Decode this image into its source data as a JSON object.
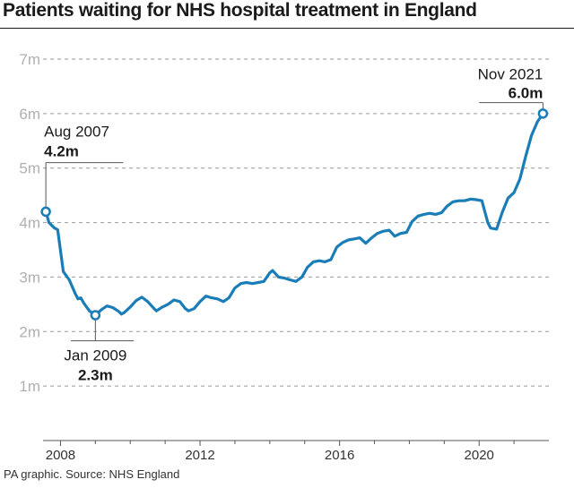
{
  "title": "Patients waiting for NHS hospital treatment in England",
  "source": "PA graphic. Source: NHS England",
  "chart_data": {
    "type": "line",
    "title": "Patients waiting for NHS hospital treatment in England",
    "xlabel": "",
    "ylabel": "",
    "unit": "m",
    "ylim": [
      0,
      7
    ],
    "xlim": [
      2007.5,
      2022.0
    ],
    "y_ticks": [
      1,
      2,
      3,
      4,
      5,
      6,
      7
    ],
    "y_tick_labels": [
      "1m",
      "2m",
      "3m",
      "4m",
      "5m",
      "6m",
      "7m"
    ],
    "x_ticks": [
      2008,
      2012,
      2016,
      2020
    ],
    "x_tick_labels": [
      "2008",
      "2012",
      "2016",
      "2020"
    ],
    "grid": "horizontal dashed",
    "legend": "none",
    "line_color": "#1a7db8",
    "series": [
      {
        "values": [
          [
            2007.58,
            4.2
          ],
          [
            2007.67,
            4.0
          ],
          [
            2007.83,
            3.9
          ],
          [
            2007.92,
            3.87
          ],
          [
            2008.08,
            3.1
          ],
          [
            2008.25,
            2.95
          ],
          [
            2008.42,
            2.7
          ],
          [
            2008.5,
            2.6
          ],
          [
            2008.58,
            2.62
          ],
          [
            2008.67,
            2.52
          ],
          [
            2008.75,
            2.45
          ],
          [
            2008.83,
            2.38
          ],
          [
            2009.0,
            2.3
          ],
          [
            2009.17,
            2.4
          ],
          [
            2009.33,
            2.47
          ],
          [
            2009.5,
            2.44
          ],
          [
            2009.67,
            2.37
          ],
          [
            2009.75,
            2.32
          ],
          [
            2009.83,
            2.35
          ],
          [
            2010.0,
            2.45
          ],
          [
            2010.17,
            2.57
          ],
          [
            2010.33,
            2.63
          ],
          [
            2010.5,
            2.55
          ],
          [
            2010.67,
            2.43
          ],
          [
            2010.75,
            2.38
          ],
          [
            2010.92,
            2.45
          ],
          [
            2011.08,
            2.5
          ],
          [
            2011.25,
            2.58
          ],
          [
            2011.42,
            2.55
          ],
          [
            2011.58,
            2.42
          ],
          [
            2011.67,
            2.38
          ],
          [
            2011.83,
            2.42
          ],
          [
            2012.0,
            2.55
          ],
          [
            2012.17,
            2.65
          ],
          [
            2012.33,
            2.62
          ],
          [
            2012.5,
            2.6
          ],
          [
            2012.67,
            2.55
          ],
          [
            2012.83,
            2.62
          ],
          [
            2013.0,
            2.8
          ],
          [
            2013.17,
            2.88
          ],
          [
            2013.33,
            2.9
          ],
          [
            2013.5,
            2.88
          ],
          [
            2013.67,
            2.9
          ],
          [
            2013.83,
            2.92
          ],
          [
            2014.0,
            3.08
          ],
          [
            2014.08,
            3.12
          ],
          [
            2014.25,
            3.0
          ],
          [
            2014.42,
            2.98
          ],
          [
            2014.58,
            2.95
          ],
          [
            2014.75,
            2.92
          ],
          [
            2014.92,
            3.0
          ],
          [
            2015.08,
            3.18
          ],
          [
            2015.25,
            3.28
          ],
          [
            2015.42,
            3.3
          ],
          [
            2015.58,
            3.28
          ],
          [
            2015.75,
            3.32
          ],
          [
            2015.92,
            3.55
          ],
          [
            2016.08,
            3.63
          ],
          [
            2016.25,
            3.68
          ],
          [
            2016.42,
            3.7
          ],
          [
            2016.58,
            3.72
          ],
          [
            2016.75,
            3.62
          ],
          [
            2016.92,
            3.72
          ],
          [
            2017.08,
            3.8
          ],
          [
            2017.25,
            3.84
          ],
          [
            2017.42,
            3.86
          ],
          [
            2017.58,
            3.75
          ],
          [
            2017.75,
            3.8
          ],
          [
            2017.92,
            3.82
          ],
          [
            2018.08,
            4.02
          ],
          [
            2018.25,
            4.12
          ],
          [
            2018.42,
            4.15
          ],
          [
            2018.58,
            4.17
          ],
          [
            2018.75,
            4.15
          ],
          [
            2018.92,
            4.18
          ],
          [
            2019.08,
            4.3
          ],
          [
            2019.25,
            4.38
          ],
          [
            2019.42,
            4.4
          ],
          [
            2019.58,
            4.4
          ],
          [
            2019.75,
            4.43
          ],
          [
            2019.92,
            4.42
          ],
          [
            2020.08,
            4.4
          ],
          [
            2020.25,
            4.0
          ],
          [
            2020.33,
            3.9
          ],
          [
            2020.5,
            3.88
          ],
          [
            2020.67,
            4.2
          ],
          [
            2020.83,
            4.45
          ],
          [
            2021.0,
            4.55
          ],
          [
            2021.17,
            4.8
          ],
          [
            2021.33,
            5.2
          ],
          [
            2021.5,
            5.6
          ],
          [
            2021.67,
            5.85
          ],
          [
            2021.83,
            6.0
          ]
        ]
      }
    ],
    "annotations": [
      {
        "label": "Aug 2007",
        "value_label": "4.2m",
        "x": 2007.58,
        "y": 4.2
      },
      {
        "label": "Jan 2009",
        "value_label": "2.3m",
        "x": 2009.0,
        "y": 2.3
      },
      {
        "label": "Nov 2021",
        "value_label": "6.0m",
        "x": 2021.83,
        "y": 6.0
      }
    ]
  }
}
